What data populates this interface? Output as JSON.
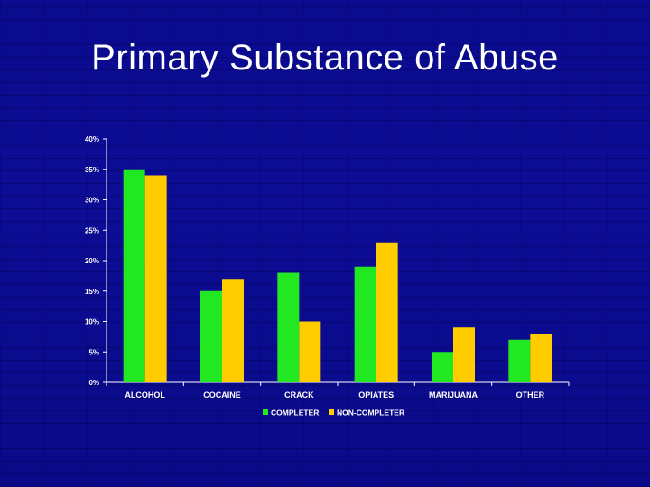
{
  "slide": {
    "title": "Primary Substance of Abuse"
  },
  "chart_data": {
    "type": "bar",
    "title": "",
    "xlabel": "",
    "ylabel": "",
    "categories": [
      "ALCOHOL",
      "COCAINE",
      "CRACK",
      "OPIATES",
      "MARIJUANA",
      "OTHER"
    ],
    "series": [
      {
        "name": "COMPLETER",
        "color": "#22e822",
        "values": [
          35,
          15,
          18,
          19,
          5,
          7
        ]
      },
      {
        "name": "NON-COMPLETER",
        "color": "#ffcc00",
        "values": [
          34,
          17,
          10,
          23,
          9,
          8
        ]
      }
    ],
    "ylim": [
      0,
      40
    ],
    "yticks": [
      0,
      5,
      10,
      15,
      20,
      25,
      30,
      35,
      40
    ],
    "ytick_labels": [
      "0%",
      "5%",
      "10%",
      "15%",
      "20%",
      "25%",
      "30%",
      "35%",
      "40%"
    ],
    "legend_position": "bottom",
    "grid": false
  }
}
